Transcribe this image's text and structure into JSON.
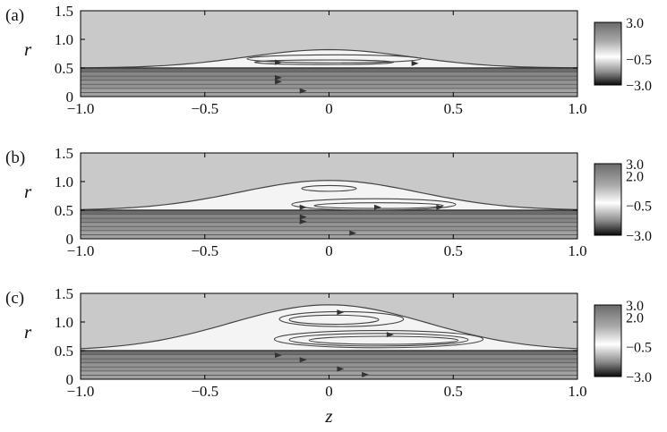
{
  "chart_data": [
    {
      "type": "heatmap",
      "panel_label": "(a)",
      "ylabel": "r",
      "xlim": [
        -1.0,
        1.0
      ],
      "ylim": [
        0,
        1.5
      ],
      "x_ticks": [
        -1.0,
        -0.5,
        0,
        0.5,
        1.0
      ],
      "x_tick_labels": [
        "−1.0",
        "−0.5",
        "0",
        "0.5",
        "1.0"
      ],
      "y_ticks": [
        0,
        0.5,
        1.0,
        1.5
      ],
      "y_tick_labels": [
        "0",
        "0.5",
        "1.0",
        "1.5"
      ],
      "interface_r": 0.5,
      "bump": {
        "center_z": 0.0,
        "peak_r": 0.82,
        "half_width": 0.75
      },
      "colorbar_ticks": [
        "3.0",
        "−0.5",
        "−3.0"
      ],
      "colorbar_tick_values": [
        3.0,
        -0.5,
        -3.0
      ],
      "closed_streamlines": [
        {
          "cz": 0.02,
          "cr": 0.66,
          "rz": 0.35,
          "rr": 0.07
        },
        {
          "cz": -0.02,
          "cr": 0.6,
          "rz": 0.28,
          "rr": 0.04
        }
      ],
      "arrows": [
        {
          "z": -0.2,
          "r": 0.6
        },
        {
          "z": 0.35,
          "r": 0.58
        },
        {
          "z": -0.2,
          "r": 0.33
        },
        {
          "z": -0.2,
          "r": 0.26
        },
        {
          "z": -0.1,
          "r": 0.1
        }
      ]
    },
    {
      "type": "heatmap",
      "panel_label": "(b)",
      "ylabel": "r",
      "xlim": [
        -1.0,
        1.0
      ],
      "ylim": [
        0,
        1.5
      ],
      "x_ticks": [
        -1.0,
        -0.5,
        0,
        0.5,
        1.0
      ],
      "x_tick_labels": [
        "−1.0",
        "−0.5",
        "0",
        "0.5",
        "1.0"
      ],
      "y_ticks": [
        0,
        0.5,
        1.0,
        1.5
      ],
      "y_tick_labels": [
        "0",
        "0.5",
        "1.0",
        "1.5"
      ],
      "interface_r": 0.5,
      "bump": {
        "center_z": 0.0,
        "peak_r": 1.02,
        "half_width": 0.82
      },
      "colorbar_ticks": [
        "3.0",
        "2.0",
        "−0.5",
        "−3.0"
      ],
      "colorbar_tick_values": [
        3.0,
        2.0,
        -0.5,
        -3.0
      ],
      "closed_streamlines": [
        {
          "cz": 0.0,
          "cr": 0.88,
          "rz": 0.11,
          "rr": 0.05
        },
        {
          "cz": 0.18,
          "cr": 0.6,
          "rz": 0.33,
          "rr": 0.1
        },
        {
          "cz": 0.2,
          "cr": 0.58,
          "rz": 0.26,
          "rr": 0.05
        }
      ],
      "arrows": [
        {
          "z": -0.1,
          "r": 0.55
        },
        {
          "z": 0.2,
          "r": 0.55
        },
        {
          "z": 0.45,
          "r": 0.55
        },
        {
          "z": -0.1,
          "r": 0.38
        },
        {
          "z": -0.1,
          "r": 0.3
        },
        {
          "z": 0.1,
          "r": 0.1
        }
      ]
    },
    {
      "type": "heatmap",
      "panel_label": "(c)",
      "ylabel": "r",
      "xlabel": "z",
      "xlim": [
        -1.0,
        1.0
      ],
      "ylim": [
        0,
        1.5
      ],
      "x_ticks": [
        -1.0,
        -0.5,
        0,
        0.5,
        1.0
      ],
      "x_tick_labels": [
        "−1.0",
        "−0.5",
        "0",
        "0.5",
        "1.0"
      ],
      "y_ticks": [
        0,
        0.5,
        1.0,
        1.5
      ],
      "y_tick_labels": [
        "0",
        "0.5",
        "1.0",
        "1.5"
      ],
      "interface_r": 0.5,
      "bump": {
        "center_z": 0.0,
        "peak_r": 1.3,
        "half_width": 0.9
      },
      "colorbar_ticks": [
        "3.0",
        "2.0",
        "−0.5",
        "−3.0"
      ],
      "colorbar_tick_values": [
        3.0,
        2.0,
        -0.5,
        -3.0
      ],
      "closed_streamlines": [
        {
          "cz": 0.05,
          "cr": 1.05,
          "rz": 0.25,
          "rr": 0.13
        },
        {
          "cz": 0.02,
          "cr": 1.04,
          "rz": 0.18,
          "rr": 0.08
        },
        {
          "cz": 0.2,
          "cr": 0.7,
          "rz": 0.42,
          "rr": 0.15
        },
        {
          "cz": 0.2,
          "cr": 0.69,
          "rz": 0.36,
          "rr": 0.11
        },
        {
          "cz": 0.22,
          "cr": 0.68,
          "rz": 0.3,
          "rr": 0.07
        }
      ],
      "arrows": [
        {
          "z": 0.05,
          "r": 1.17
        },
        {
          "z": 0.25,
          "r": 0.78
        },
        {
          "z": -0.2,
          "r": 0.42
        },
        {
          "z": -0.1,
          "r": 0.34
        },
        {
          "z": 0.05,
          "r": 0.18
        },
        {
          "z": 0.15,
          "r": 0.08
        }
      ]
    }
  ]
}
